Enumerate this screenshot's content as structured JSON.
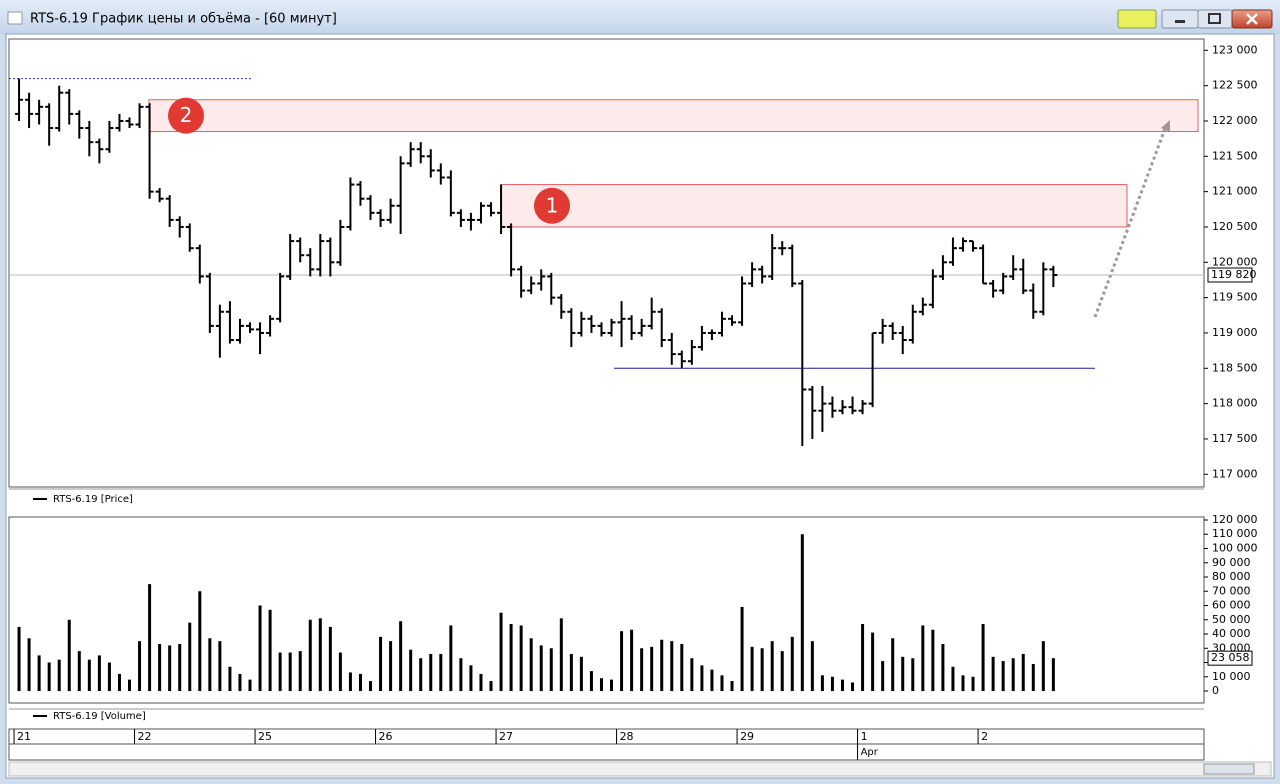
{
  "window": {
    "title": "RTS-6.19 График цены и объёма - [60 минут]"
  },
  "x_axis": {
    "xlim": [
      -1,
      118
    ],
    "xticks": [
      {
        "value": 0,
        "label": "21"
      },
      {
        "value": 12,
        "label": "22"
      },
      {
        "value": 24,
        "label": "25"
      },
      {
        "value": 36,
        "label": "26"
      },
      {
        "value": 48,
        "label": "27"
      },
      {
        "value": 60,
        "label": "28"
      },
      {
        "value": 72,
        "label": "29"
      },
      {
        "value": 84,
        "label": "1"
      },
      {
        "value": 96,
        "label": "2"
      }
    ],
    "month_label": {
      "value": 84,
      "label": "Apr"
    }
  },
  "chart_data": [
    {
      "type": "ohlc",
      "ylim": [
        116820,
        123160
      ],
      "yticks": [
        {
          "value": 123000,
          "label": "123 000"
        },
        {
          "value": 122500,
          "label": "122 500"
        },
        {
          "value": 122000,
          "label": "122 000"
        },
        {
          "value": 121500,
          "label": "121 500"
        },
        {
          "value": 121000,
          "label": "121 000"
        },
        {
          "value": 120500,
          "label": "120 500"
        },
        {
          "value": 120000,
          "label": "120 000"
        },
        {
          "value": 119500,
          "label": "119 500"
        },
        {
          "value": 119000,
          "label": "119 000"
        },
        {
          "value": 118500,
          "label": "118 500"
        },
        {
          "value": 118000,
          "label": "118 000"
        },
        {
          "value": 117500,
          "label": "117 500"
        },
        {
          "value": 117000,
          "label": "117 000"
        }
      ],
      "last_value": {
        "value": 119820,
        "label": "119 820"
      },
      "zones": [
        {
          "label": "2",
          "low": 121850,
          "high": 122300
        },
        {
          "label": "1",
          "low": 120500,
          "high": 121100
        }
      ],
      "hlines": [
        118500,
        122600
      ],
      "series": [
        {
          "name": "RTS-6.19 [Price]",
          "color": "#000000",
          "ohlc": [
            [
              122100,
              122600,
              122000,
              122300
            ],
            [
              122300,
              122400,
              121900,
              122100
            ],
            [
              122100,
              122300,
              121950,
              122200
            ],
            [
              122200,
              122250,
              121650,
              121900
            ],
            [
              121900,
              122500,
              121850,
              122400
            ],
            [
              122400,
              122450,
              121950,
              122100
            ],
            [
              122100,
              122150,
              121750,
              121900
            ],
            [
              121900,
              122000,
              121500,
              121700
            ],
            [
              121700,
              121750,
              121400,
              121600
            ],
            [
              121600,
              122000,
              121550,
              121900
            ],
            [
              121900,
              122100,
              121850,
              122000
            ],
            [
              122000,
              122050,
              121900,
              121950
            ],
            [
              121950,
              122250,
              121900,
              122200
            ],
            [
              122200,
              122250,
              120900,
              121000
            ],
            [
              121000,
              121050,
              120850,
              120900
            ],
            [
              120900,
              120950,
              120500,
              120600
            ],
            [
              120600,
              120650,
              120350,
              120500
            ],
            [
              120500,
              120550,
              120150,
              120200
            ],
            [
              120200,
              120250,
              119700,
              119800
            ],
            [
              119800,
              119850,
              119000,
              119100
            ],
            [
              119100,
              119400,
              118650,
              119300
            ],
            [
              119300,
              119450,
              118850,
              118900
            ],
            [
              118900,
              119200,
              118850,
              119100
            ],
            [
              119100,
              119150,
              119000,
              119050
            ],
            [
              119050,
              119150,
              118700,
              119000
            ],
            [
              119000,
              119250,
              118950,
              119200
            ],
            [
              119200,
              119850,
              119150,
              119800
            ],
            [
              119800,
              120400,
              119750,
              120300
            ],
            [
              120300,
              120350,
              120000,
              120100
            ],
            [
              120100,
              120200,
              119800,
              119900
            ],
            [
              119900,
              120400,
              119800,
              120300
            ],
            [
              120300,
              120350,
              119800,
              120000
            ],
            [
              120000,
              120600,
              119950,
              120500
            ],
            [
              120500,
              121200,
              120450,
              121100
            ],
            [
              121100,
              121150,
              120800,
              120900
            ],
            [
              120900,
              120950,
              120600,
              120700
            ],
            [
              120700,
              120750,
              120500,
              120600
            ],
            [
              120600,
              120900,
              120550,
              120800
            ],
            [
              120800,
              121500,
              120400,
              121400
            ],
            [
              121400,
              121700,
              121350,
              121600
            ],
            [
              121600,
              121700,
              121400,
              121500
            ],
            [
              121500,
              121600,
              121200,
              121300
            ],
            [
              121300,
              121400,
              121100,
              121200
            ],
            [
              121200,
              121300,
              120650,
              120700
            ],
            [
              120700,
              120750,
              120500,
              120600
            ],
            [
              120600,
              120700,
              120450,
              120600
            ],
            [
              120600,
              120850,
              120550,
              120800
            ],
            [
              120800,
              120850,
              120650,
              120700
            ],
            [
              120700,
              121100,
              120400,
              120500
            ],
            [
              120500,
              120550,
              119800,
              119900
            ],
            [
              119900,
              119950,
              119500,
              119600
            ],
            [
              119600,
              119800,
              119550,
              119700
            ],
            [
              119700,
              119900,
              119600,
              119800
            ],
            [
              119800,
              119850,
              119400,
              119500
            ],
            [
              119500,
              119550,
              119200,
              119300
            ],
            [
              119300,
              119350,
              118800,
              119000
            ],
            [
              119000,
              119300,
              118950,
              119200
            ],
            [
              119200,
              119250,
              119000,
              119100
            ],
            [
              119100,
              119150,
              118950,
              119000
            ],
            [
              119000,
              119200,
              118950,
              119150
            ],
            [
              119150,
              119450,
              118800,
              119200
            ],
            [
              119200,
              119250,
              118900,
              119000
            ],
            [
              119000,
              119200,
              118950,
              119100
            ],
            [
              119100,
              119500,
              119050,
              119300
            ],
            [
              119300,
              119350,
              118800,
              118900
            ],
            [
              118900,
              119000,
              118550,
              118700
            ],
            [
              118700,
              118750,
              118500,
              118600
            ],
            [
              118600,
              118900,
              118550,
              118800
            ],
            [
              118800,
              119100,
              118750,
              119000
            ],
            [
              119000,
              119050,
              118900,
              119000
            ],
            [
              119000,
              119300,
              118950,
              119200
            ],
            [
              119200,
              119250,
              119100,
              119150
            ],
            [
              119150,
              119800,
              119100,
              119700
            ],
            [
              119700,
              120000,
              119650,
              119900
            ],
            [
              119900,
              119950,
              119700,
              119800
            ],
            [
              119800,
              120400,
              119750,
              120200
            ],
            [
              120200,
              120300,
              120100,
              120200
            ],
            [
              120200,
              120250,
              119650,
              119700
            ],
            [
              119700,
              119750,
              117400,
              118200
            ],
            [
              118200,
              118250,
              117500,
              117900
            ],
            [
              117900,
              118250,
              117600,
              118000
            ],
            [
              118000,
              118100,
              117800,
              117900
            ],
            [
              117900,
              118050,
              117850,
              117950
            ],
            [
              117950,
              118100,
              117850,
              117900
            ],
            [
              117900,
              118050,
              117850,
              118000
            ],
            [
              118000,
              119000,
              117950,
              119000
            ],
            [
              119000,
              119200,
              118850,
              119100
            ],
            [
              119100,
              119150,
              118900,
              119000
            ],
            [
              119000,
              119100,
              118700,
              118900
            ],
            [
              118900,
              119400,
              118850,
              119300
            ],
            [
              119300,
              119500,
              119250,
              119400
            ],
            [
              119400,
              119900,
              119350,
              119800
            ],
            [
              119800,
              120100,
              119750,
              120000
            ],
            [
              120000,
              120350,
              119950,
              120200
            ],
            [
              120200,
              120350,
              120150,
              120300
            ],
            [
              120300,
              120300,
              120150,
              120200
            ],
            [
              120200,
              120250,
              119700,
              119700
            ],
            [
              119700,
              119750,
              119500,
              119600
            ],
            [
              119600,
              119850,
              119550,
              119800
            ],
            [
              119800,
              120100,
              119750,
              119900
            ],
            [
              119900,
              120050,
              119550,
              119600
            ],
            [
              119600,
              119700,
              119200,
              119300
            ],
            [
              119300,
              120000,
              119250,
              119900
            ],
            [
              119900,
              119950,
              119650,
              119820
            ]
          ]
        }
      ]
    },
    {
      "type": "bar",
      "ylim": [
        -8400,
        122100
      ],
      "yticks": [
        {
          "value": 120000,
          "label": "120 000"
        },
        {
          "value": 110000,
          "label": "110 000"
        },
        {
          "value": 100000,
          "label": "100 000"
        },
        {
          "value": 90000,
          "label": "90 000"
        },
        {
          "value": 80000,
          "label": "80 000"
        },
        {
          "value": 70000,
          "label": "70 000"
        },
        {
          "value": 60000,
          "label": "60 000"
        },
        {
          "value": 50000,
          "label": "50 000"
        },
        {
          "value": 40000,
          "label": "40 000"
        },
        {
          "value": 30000,
          "label": "30 000"
        },
        {
          "value": 20000,
          "label": "20 000"
        },
        {
          "value": 10000,
          "label": "10 000"
        },
        0
      ],
      "last_value": {
        "value": 23058,
        "label": "23 058"
      },
      "series": [
        {
          "name": "RTS-6.19 [Volume]",
          "color": "#000000",
          "values": [
            45000,
            37000,
            25000,
            20000,
            22000,
            50000,
            28000,
            22000,
            25000,
            20000,
            12000,
            8000,
            35000,
            75000,
            33000,
            32000,
            33000,
            48000,
            70000,
            37000,
            35000,
            17000,
            12000,
            8000,
            60000,
            57000,
            27000,
            27000,
            28000,
            50000,
            51000,
            45000,
            27000,
            13000,
            12000,
            7000,
            38000,
            35000,
            49000,
            29000,
            23000,
            26000,
            26000,
            46000,
            23000,
            18000,
            12000,
            7000,
            55000,
            47000,
            46000,
            37000,
            32000,
            30000,
            51000,
            26000,
            24000,
            14000,
            9000,
            8000,
            42000,
            43000,
            30000,
            31000,
            36000,
            35000,
            33000,
            23000,
            18000,
            15000,
            11000,
            7000,
            59000,
            31000,
            30000,
            35000,
            28000,
            38000,
            110000,
            35000,
            11000,
            10000,
            8000,
            6000,
            47000,
            41000,
            21000,
            37000,
            24000,
            23000,
            46000,
            43000,
            33000,
            17000,
            11000,
            10000,
            47000,
            24000,
            21000,
            23000,
            26000,
            19000,
            35000,
            23058
          ]
        }
      ]
    }
  ]
}
